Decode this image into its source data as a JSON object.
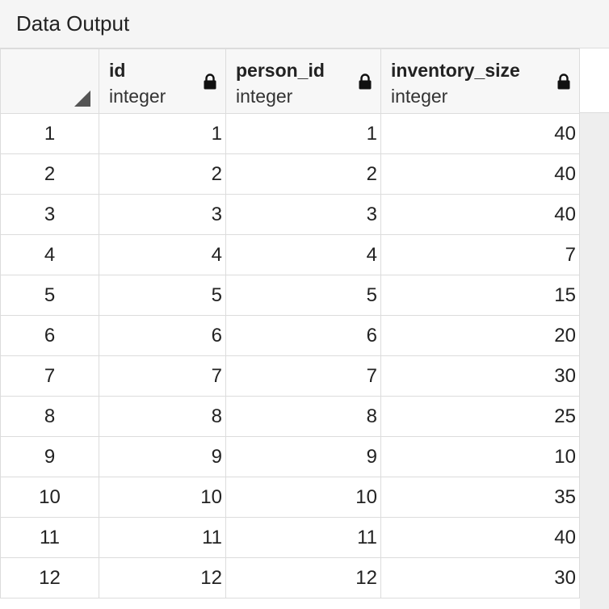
{
  "panel": {
    "title": "Data Output"
  },
  "columns": [
    {
      "name": "id",
      "type": "integer",
      "icon": "lock-icon"
    },
    {
      "name": "person_id",
      "type": "integer",
      "icon": "lock-icon"
    },
    {
      "name": "inventory_size",
      "type": "integer",
      "icon": "lock-icon"
    }
  ],
  "rows": [
    {
      "row": "1",
      "id": "1",
      "person_id": "1",
      "inventory_size": "40"
    },
    {
      "row": "2",
      "id": "2",
      "person_id": "2",
      "inventory_size": "40"
    },
    {
      "row": "3",
      "id": "3",
      "person_id": "3",
      "inventory_size": "40"
    },
    {
      "row": "4",
      "id": "4",
      "person_id": "4",
      "inventory_size": "7"
    },
    {
      "row": "5",
      "id": "5",
      "person_id": "5",
      "inventory_size": "15"
    },
    {
      "row": "6",
      "id": "6",
      "person_id": "6",
      "inventory_size": "20"
    },
    {
      "row": "7",
      "id": "7",
      "person_id": "7",
      "inventory_size": "30"
    },
    {
      "row": "8",
      "id": "8",
      "person_id": "8",
      "inventory_size": "25"
    },
    {
      "row": "9",
      "id": "9",
      "person_id": "9",
      "inventory_size": "10"
    },
    {
      "row": "10",
      "id": "10",
      "person_id": "10",
      "inventory_size": "35"
    },
    {
      "row": "11",
      "id": "11",
      "person_id": "11",
      "inventory_size": "40"
    },
    {
      "row": "12",
      "id": "12",
      "person_id": "12",
      "inventory_size": "30"
    }
  ]
}
